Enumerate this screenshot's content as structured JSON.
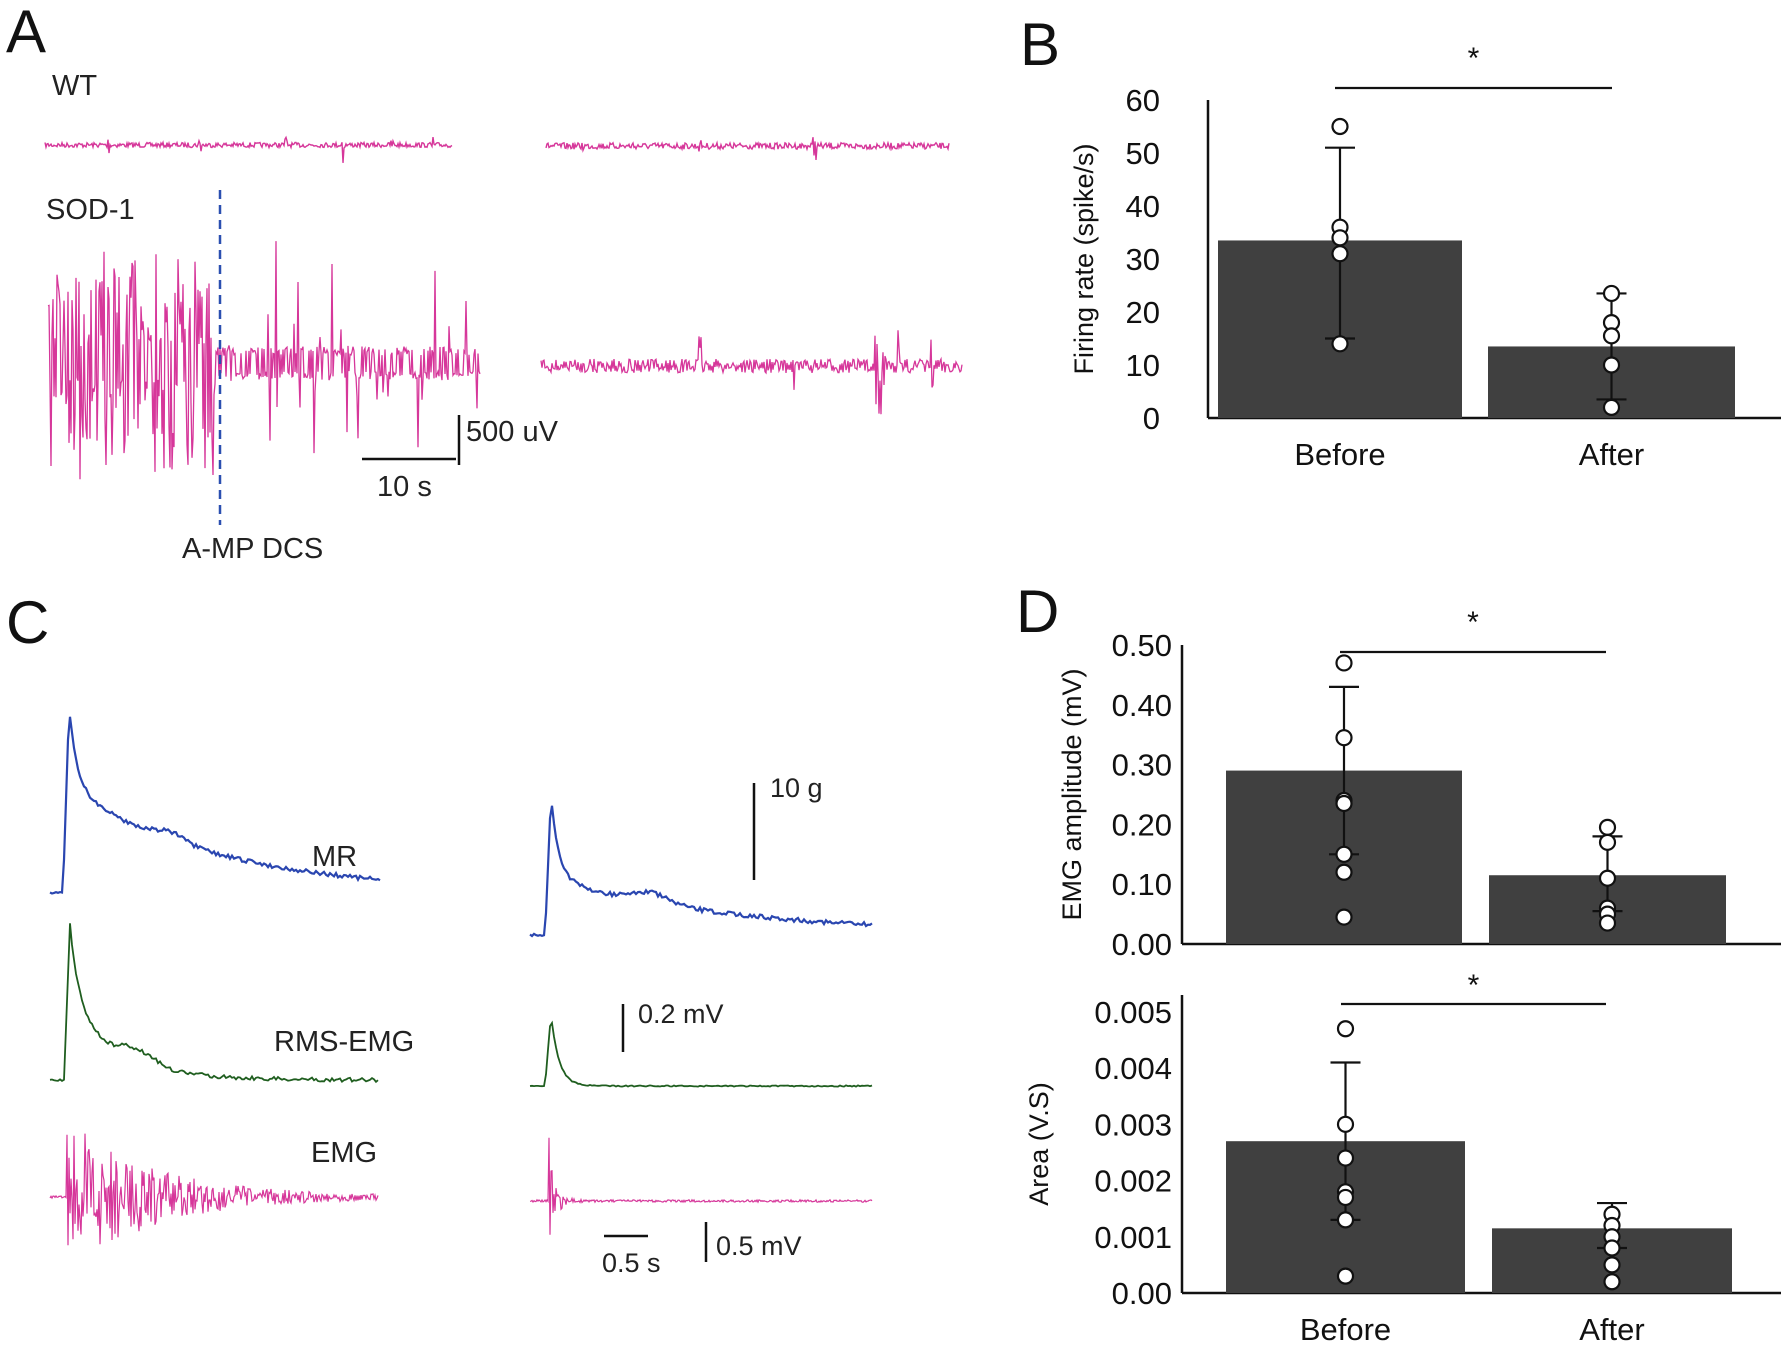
{
  "panels": {
    "A": {
      "letter": "A",
      "wt_label": "WT",
      "sod_label": "SOD-1",
      "event_label": "A-MP DCS",
      "scale_v": "500 uV",
      "scale_t": "10 s"
    },
    "C": {
      "letter": "C",
      "mr_label": "MR",
      "rms_label": "RMS-EMG",
      "emg_label": "EMG",
      "scale_force": "10 g",
      "scale_rms": "0.2 mV",
      "scale_emg": "0.5 mV",
      "scale_time": "0.5 s"
    }
  },
  "colors": {
    "magenta": "#d6379a",
    "blue": "#2a46b0",
    "green": "#1f5e1f",
    "bar": "#404040",
    "dash": "#2a4fb0"
  },
  "chart_data": [
    {
      "id": "B",
      "letter": "B",
      "type": "bar",
      "categories": [
        "Before",
        "After"
      ],
      "values": [
        33.5,
        13.5
      ],
      "error_low": [
        15,
        3.5
      ],
      "error_high": [
        51,
        23.5
      ],
      "points": [
        [
          55,
          36,
          34,
          31,
          14
        ],
        [
          23.5,
          18,
          15.5,
          10,
          2
        ]
      ],
      "ylabel": "Firing rate (spike/s)",
      "ylim": [
        0,
        60
      ],
      "yticks": [
        "0",
        "10",
        "20",
        "30",
        "40",
        "50",
        "60"
      ],
      "significance": "*"
    },
    {
      "id": "D1",
      "letter": "D",
      "type": "bar",
      "categories": [
        "",
        ""
      ],
      "values": [
        0.29,
        0.115
      ],
      "error_low": [
        0.15,
        0.055
      ],
      "error_high": [
        0.43,
        0.18
      ],
      "points": [
        [
          0.47,
          0.345,
          0.24,
          0.235,
          0.15,
          0.12,
          0.045
        ],
        [
          0.195,
          0.17,
          0.11,
          0.06,
          0.05,
          0.035
        ]
      ],
      "ylabel": "EMG amplitude (mV)",
      "ylim": [
        0,
        0.5
      ],
      "yticks": [
        "0.00",
        "0.10",
        "0.20",
        "0.30",
        "0.40",
        "0.50"
      ],
      "significance": "*"
    },
    {
      "id": "D2",
      "letter": "",
      "type": "bar",
      "categories": [
        "Before",
        "After"
      ],
      "values": [
        0.0027,
        0.00115
      ],
      "error_low": [
        0.0013,
        0.0008
      ],
      "error_high": [
        0.0041,
        0.0016
      ],
      "points": [
        [
          0.0047,
          0.003,
          0.0024,
          0.0018,
          0.0017,
          0.0013,
          0.0003
        ],
        [
          0.0014,
          0.0012,
          0.001,
          0.0008,
          0.0005,
          0.0002
        ]
      ],
      "ylabel": "Area (V.S)",
      "ylim": [
        0,
        0.0053
      ],
      "yticks": [
        "0.00",
        "0.001",
        "0.002",
        "0.003",
        "0.004",
        "0.005"
      ],
      "significance": "*"
    }
  ]
}
